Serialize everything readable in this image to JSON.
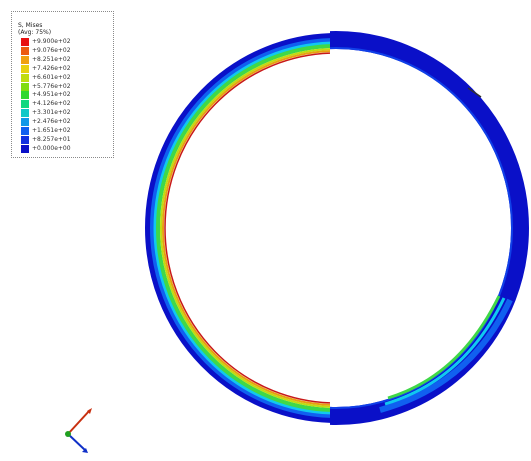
{
  "legend": {
    "title": "S, Mises",
    "subtitle": "(Avg: 75%)",
    "values": [
      "+9.900e+02",
      "+9.076e+02",
      "+8.251e+02",
      "+7.426e+02",
      "+6.601e+02",
      "+5.776e+02",
      "+4.951e+02",
      "+4.126e+02",
      "+3.301e+02",
      "+2.476e+02",
      "+1.651e+02",
      "+8.257e+01",
      "+0.000e+00"
    ],
    "colors": [
      "#e81010",
      "#ec5a10",
      "#f0a010",
      "#e8d010",
      "#c0dc10",
      "#80dc10",
      "#30d830",
      "#10d880",
      "#10c8c8",
      "#1098e8",
      "#1060f0",
      "#1030e0",
      "#0a10c8"
    ]
  },
  "ring": {
    "colors": {
      "outer_band": "#0a10c8",
      "outer_mid": "#1060f0",
      "light_blue": "#10c8f0",
      "green": "#40d848",
      "yellow_green": "#c0dc10",
      "orange": "#e8a010",
      "inner_red": "#c81818",
      "seam": "#303030"
    }
  },
  "triad": {
    "x_color": "#1030c8",
    "y_color": "#c83010",
    "z_color": "#20a020"
  }
}
